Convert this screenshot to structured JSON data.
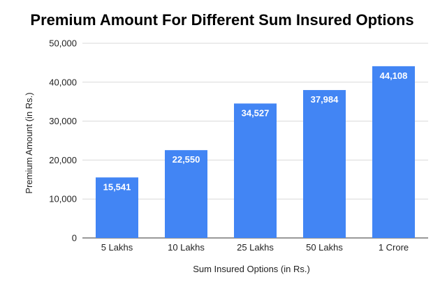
{
  "chart_data": {
    "type": "bar",
    "title": "Premium Amount For Different Sum Insured Options",
    "xlabel": "Sum Insured Options (in Rs.)",
    "ylabel": "Premium Amount (in Rs.)",
    "categories": [
      "5 Lakhs",
      "10 Lakhs",
      "25 Lakhs",
      "50 Lakhs",
      "1 Crore"
    ],
    "values": [
      15541,
      22550,
      34527,
      37984,
      44108
    ],
    "data_labels": [
      "15,541",
      "22,550",
      "34,527",
      "37,984",
      "44,108"
    ],
    "ylim": [
      0,
      50000
    ],
    "yticks": [
      0,
      10000,
      20000,
      30000,
      40000,
      50000
    ],
    "ytick_labels": [
      "0",
      "10,000",
      "20,000",
      "30,000",
      "40,000",
      "50,000"
    ],
    "grid": true,
    "legend": "none",
    "bar_color": "#4285f4"
  }
}
